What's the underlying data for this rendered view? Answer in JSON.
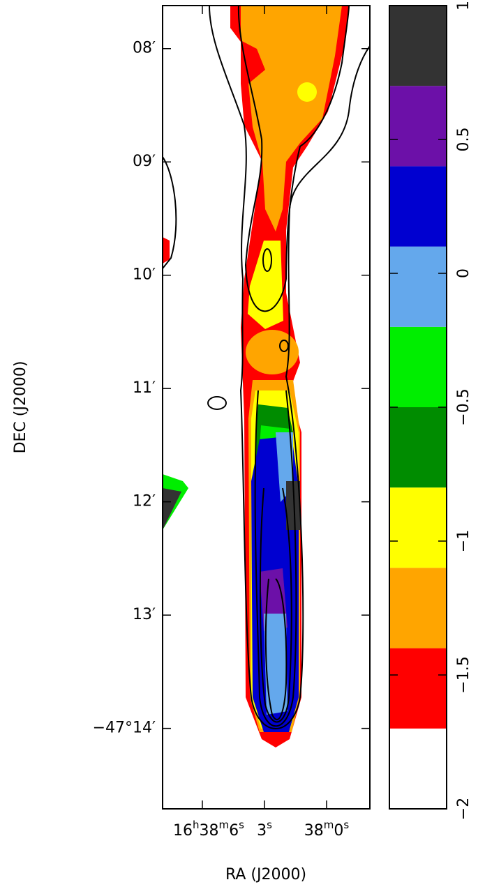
{
  "chart_data": [
    {
      "type": "image",
      "xlabel": "RA (J2000)",
      "ylabel": "DEC (J2000)",
      "xlim": [
        7.92,
        -2.09
      ],
      "xticks": [
        {
          "value": 6,
          "label": "16h38m6s"
        },
        {
          "value": 3,
          "label": "3s"
        },
        {
          "value": 0,
          "label": "38m0s"
        }
      ],
      "ylim": [
        7.62,
        14.71
      ],
      "yticks": [
        {
          "value": 8,
          "label": "08′"
        },
        {
          "value": 9,
          "label": "09′"
        },
        {
          "value": 10,
          "label": "10′"
        },
        {
          "value": 11,
          "label": "11′"
        },
        {
          "value": 12,
          "label": "12′"
        },
        {
          "value": 13,
          "label": "13′"
        },
        {
          "value": 14,
          "label": "−47°14′"
        }
      ]
    },
    {
      "type": "colorbar",
      "ylim": [
        -2,
        1
      ],
      "yticks": [
        1,
        0.5,
        0,
        {
          "value": -0.5,
          "label": "−0.5"
        },
        {
          "value": -1,
          "label": "−1"
        },
        {
          "value": -1.5,
          "label": "−1.5"
        },
        {
          "value": -2,
          "label": "−2"
        }
      ],
      "levels": [
        -2,
        -1.7,
        -1.4,
        -1.1,
        -0.8,
        -0.5,
        -0.2,
        0.1,
        0.4,
        0.7,
        1
      ],
      "colors": [
        "#ffffff",
        "#ff0000",
        "#ffa500",
        "#ffff00",
        "#008c00",
        "#00ee00",
        "#64a8ec",
        "#0000d0",
        "#6c10a8",
        "#333333"
      ]
    }
  ]
}
